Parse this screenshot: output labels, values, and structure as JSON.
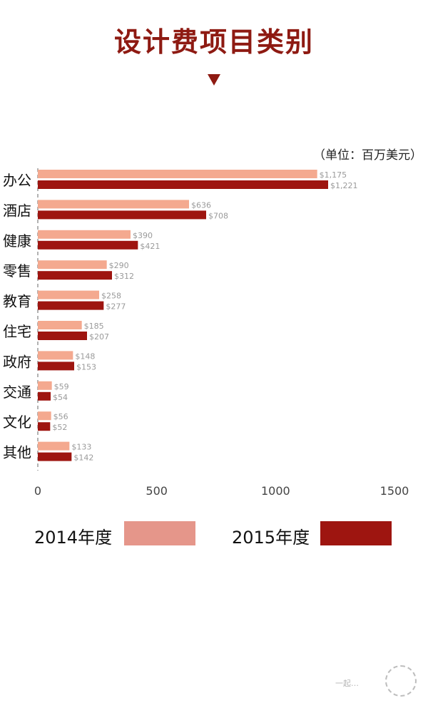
{
  "title": "设计费项目类别",
  "arrow_icon": "down-triangle-icon",
  "unit": "（单位：百万美元）",
  "colors": {
    "series2014": "#f4a98f",
    "series2015": "#9e1510",
    "title": "#8e1a12",
    "legend2014": "#e5968a",
    "legend2015": "#9e1510"
  },
  "legend": [
    {
      "label": "2014年度",
      "color": "#e5968a"
    },
    {
      "label": "2015年度",
      "color": "#9e1510"
    }
  ],
  "watermark": "一起…",
  "chart_data": {
    "type": "bar",
    "orientation": "horizontal",
    "categories": [
      "办公",
      "酒店",
      "健康",
      "零售",
      "教育",
      "住宅",
      "政府",
      "交通",
      "文化",
      "其他"
    ],
    "series": [
      {
        "name": "2014年度",
        "values": [
          1175,
          636,
          390,
          290,
          258,
          185,
          148,
          59,
          56,
          133
        ],
        "labels": [
          "$1,175",
          "$636",
          "$390",
          "$290",
          "$258",
          "$185",
          "$148",
          "$59",
          "$56",
          "$133"
        ]
      },
      {
        "name": "2015年度",
        "values": [
          1221,
          708,
          421,
          312,
          277,
          207,
          153,
          54,
          52,
          142
        ],
        "labels": [
          "$1,221",
          "$708",
          "$421",
          "$312",
          "$277",
          "$207",
          "$153",
          "$54",
          "$52",
          "$142"
        ]
      }
    ],
    "xlim": [
      0,
      1500
    ],
    "xticks": [
      "0",
      "500",
      "1000",
      "1500"
    ],
    "grid": false,
    "legend_position": "bottom"
  }
}
